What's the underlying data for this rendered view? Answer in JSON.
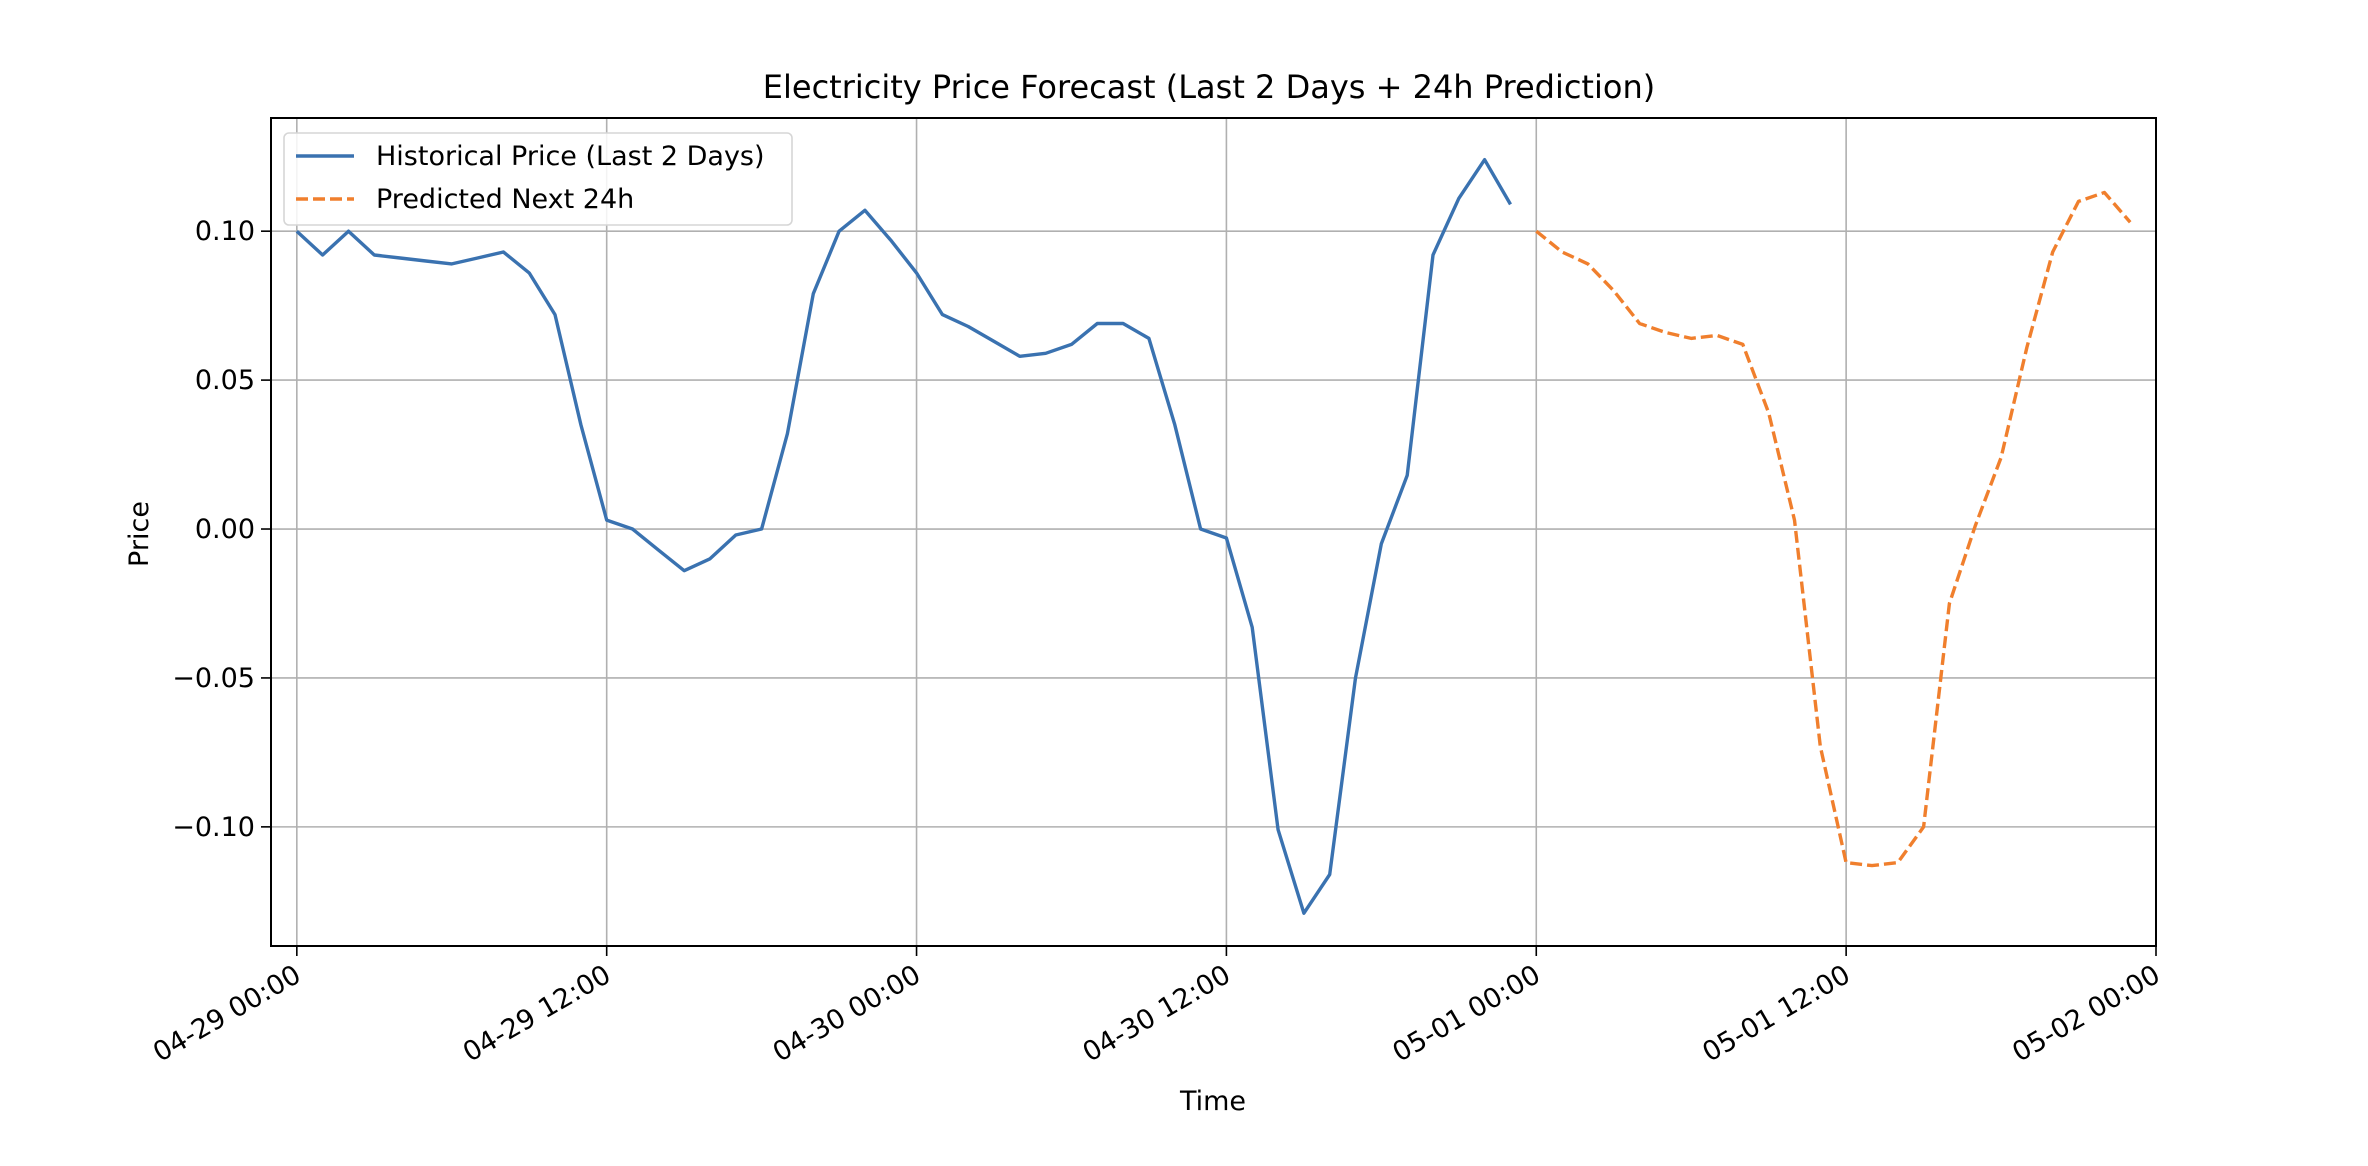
{
  "chart_data": {
    "type": "line",
    "title": "Electricity Price Forecast (Last 2 Days + 24h Prediction)",
    "xlabel": "Time",
    "ylabel": "Price",
    "x_unit": "hours since 04-29 00:00",
    "xlim": [
      -1,
      72
    ],
    "ylim": [
      -0.14,
      0.138
    ],
    "grid": true,
    "legend_position": "upper left",
    "x_ticks": [
      {
        "x": 0,
        "label": "04-29 00:00"
      },
      {
        "x": 12,
        "label": "04-29 12:00"
      },
      {
        "x": 24,
        "label": "04-30 00:00"
      },
      {
        "x": 36,
        "label": "04-30 12:00"
      },
      {
        "x": 48,
        "label": "05-01 00:00"
      },
      {
        "x": 60,
        "label": "05-01 12:00"
      },
      {
        "x": 72,
        "label": "05-02 00:00"
      }
    ],
    "y_ticks": [
      {
        "y": -0.1,
        "label": "−0.10"
      },
      {
        "y": -0.05,
        "label": "−0.05"
      },
      {
        "y": 0.0,
        "label": "0.00"
      },
      {
        "y": 0.05,
        "label": "0.05"
      },
      {
        "y": 0.1,
        "label": "0.10"
      }
    ],
    "series": [
      {
        "name": "Historical Price (Last 2 Days)",
        "color": "#3a72b0",
        "style": "solid",
        "x": [
          0,
          1,
          2,
          3,
          4,
          5,
          6,
          7,
          8,
          9,
          10,
          11,
          12,
          13,
          14,
          15,
          16,
          17,
          18,
          19,
          20,
          21,
          22,
          23,
          24,
          25,
          26,
          27,
          28,
          29,
          30,
          31,
          32,
          33,
          34,
          35,
          36,
          37,
          38,
          39,
          40,
          41,
          42,
          43,
          44,
          45,
          46,
          47
        ],
        "y": [
          0.1,
          0.092,
          0.1,
          0.092,
          0.091,
          0.09,
          0.089,
          0.091,
          0.093,
          0.086,
          0.072,
          0.035,
          0.003,
          0.0,
          -0.007,
          -0.014,
          -0.01,
          -0.002,
          0.0,
          0.032,
          0.079,
          0.1,
          0.107,
          0.097,
          0.086,
          0.072,
          0.068,
          0.063,
          0.058,
          0.059,
          0.062,
          0.069,
          0.069,
          0.064,
          0.035,
          0.0,
          -0.003,
          -0.033,
          -0.101,
          -0.129,
          -0.116,
          -0.05,
          -0.005,
          0.018,
          0.092,
          0.111,
          0.124,
          0.109
        ]
      },
      {
        "name": "Predicted Next 24h",
        "color": "#f07f2d",
        "style": "dashed",
        "x": [
          48,
          49,
          50,
          51,
          52,
          53,
          54,
          55,
          56,
          57,
          58,
          59,
          60,
          61,
          62,
          63,
          64,
          65,
          66,
          67,
          68,
          69,
          70,
          71
        ],
        "y": [
          0.1,
          0.093,
          0.089,
          0.08,
          0.069,
          0.066,
          0.064,
          0.065,
          0.062,
          0.039,
          0.003,
          -0.073,
          -0.112,
          -0.113,
          -0.112,
          -0.1,
          -0.025,
          0.001,
          0.024,
          0.061,
          0.093,
          0.11,
          0.113,
          0.103
        ]
      }
    ]
  }
}
